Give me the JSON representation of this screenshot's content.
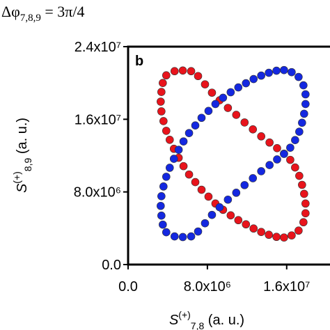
{
  "chart_data": {
    "type": "scatter",
    "annotation": {
      "base": "Δφ",
      "sub": "7,8,9",
      "rest": " = 3π/4"
    },
    "panel_label": "b",
    "x_label": {
      "italic": "S",
      "sup": "(+)",
      "sub": "7,8",
      "rest": " (a. u.)"
    },
    "y_label": {
      "italic": "S",
      "sup": "(+)",
      "sub": "8,9",
      "rest": " (a. u.)"
    },
    "xlim": [
      0,
      20300000
    ],
    "ylim": [
      0,
      24000000
    ],
    "xticks": [
      {
        "value": 0,
        "label": "0.0"
      },
      {
        "value": 8000000,
        "label": "8.0x10⁶"
      },
      {
        "value": 16000000,
        "label": "1.6x10⁷"
      }
    ],
    "yticks": [
      {
        "value": 0,
        "label": "0.0"
      },
      {
        "value": 8000000,
        "label": "8.0x10⁶"
      },
      {
        "value": 16000000,
        "label": "1.6x10⁷"
      },
      {
        "value": 24000000,
        "label": "2.4x10⁷"
      }
    ],
    "series": [
      {
        "color": "#e8141c",
        "x": [
          3850000.0,
          4690000.0,
          5520000.0,
          6360000.0,
          7060000.0,
          7760000.0,
          8460000.0,
          9230000.0,
          10070000.0,
          10910000.0,
          11750000.0,
          12590000.0,
          13430000.0,
          14270000.0,
          15030000.0,
          15730000.0,
          16360000.0,
          16850000.0,
          17270000.0,
          17550000.0,
          17760000.0,
          17900000.0,
          17900000.0,
          17690000.0,
          17200000.0,
          16500000.0,
          15730000.0,
          14970000.0,
          14200000.0,
          13430000.0,
          12660000.0,
          11890000.0,
          11120000.0,
          10350000.0,
          9580000.0,
          8810000.0,
          8110000.0,
          7410000.0,
          6780000.0,
          6150000.0,
          5590000.0,
          5100000.0,
          4620000.0,
          4200000.0,
          3850000.0,
          3570000.0,
          3360000.0,
          3290000.0,
          3360000.0,
          3500000.0
        ],
        "values": [
          20840000.0,
          21300000.0,
          21370000.0,
          21300000.0,
          20760000.0,
          19850000.0,
          18930000.0,
          18090000.0,
          17250000.0,
          16490000.0,
          15650000.0,
          14890000.0,
          14120000.0,
          13440000.0,
          12820000.0,
          12210000.0,
          11530000.0,
          10690000.0,
          9770000.0,
          8780000.0,
          7790000.0,
          6720000.0,
          5650000.0,
          4660000.0,
          3740000.0,
          3210000.0,
          2980000.0,
          3050000.0,
          3280000.0,
          3590000.0,
          3970000.0,
          4430000.0,
          4890000.0,
          5420000.0,
          6030000.0,
          6720000.0,
          7480000.0,
          8240000.0,
          9080000.0,
          9920000.0,
          10840000.0,
          11760000.0,
          12750000.0,
          13740000.0,
          14730000.0,
          15800000.0,
          16870000.0,
          17940000.0,
          19010000.0,
          20000000.0
        ]
      },
      {
        "color": "#1428e0",
        "x": [
          3850000.0,
          4690000.0,
          5520000.0,
          6360000.0,
          7060000.0,
          7760000.0,
          8460000.0,
          9230000.0,
          10070000.0,
          10910000.0,
          11750000.0,
          12590000.0,
          13430000.0,
          14270000.0,
          15030000.0,
          15730000.0,
          16360000.0,
          16850000.0,
          17270000.0,
          17550000.0,
          17760000.0,
          17900000.0,
          17900000.0,
          17690000.0,
          17200000.0,
          16500000.0,
          15730000.0,
          14970000.0,
          14200000.0,
          13430000.0,
          12660000.0,
          11890000.0,
          11120000.0,
          10350000.0,
          9580000.0,
          8810000.0,
          8110000.0,
          7410000.0,
          6780000.0,
          6150000.0,
          5590000.0,
          5100000.0,
          4620000.0,
          4200000.0,
          3850000.0,
          3570000.0,
          3360000.0,
          3290000.0,
          3360000.0,
          3500000.0
        ],
        "values": [
          3560000.0,
          3100000.0,
          3030000.0,
          3100000.0,
          3640000.0,
          4550000.0,
          5470000.0,
          6310000.0,
          7150000.0,
          7910000.0,
          8750000.0,
          9510000.0,
          10280000.0,
          10960000.0,
          11580000.0,
          12190000.0,
          12870000.0,
          13710000.0,
          14630000.0,
          15620000.0,
          16610000.0,
          17680000.0,
          18750000.0,
          19740000.0,
          20660000.0,
          21190000.0,
          21420000.0,
          21350000.0,
          21120000.0,
          20810000.0,
          20430000.0,
          19970000.0,
          19510000.0,
          18980000.0,
          18370000.0,
          17680000.0,
          16920000.0,
          16160000.0,
          15320000.0,
          14480000.0,
          13560000.0,
          12640000.0,
          11650000.0,
          10660000.0,
          9670000.0,
          8600000.0,
          7530000.0,
          6460000.0,
          5390000.0,
          4400000.0
        ]
      }
    ]
  }
}
